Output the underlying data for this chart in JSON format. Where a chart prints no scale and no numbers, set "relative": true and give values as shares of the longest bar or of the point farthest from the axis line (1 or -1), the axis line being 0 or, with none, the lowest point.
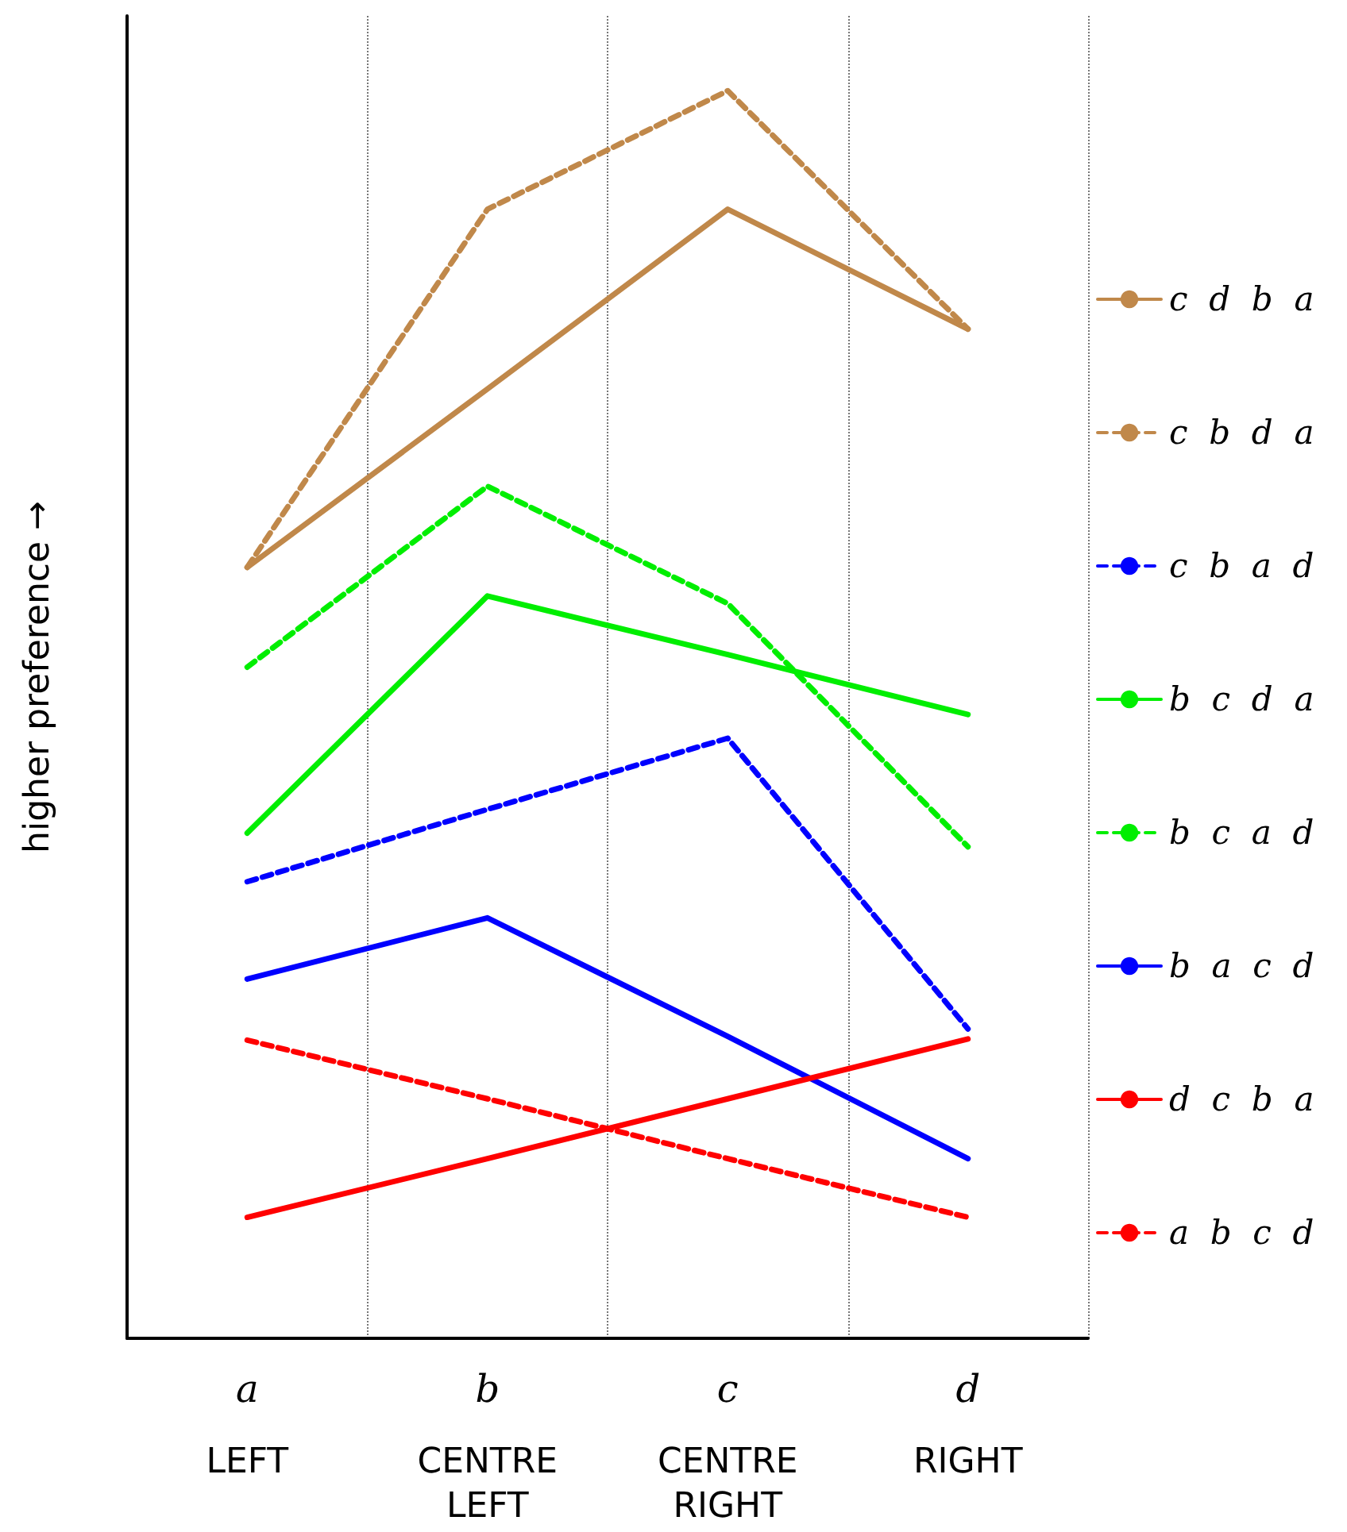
{
  "chart_data": {
    "type": "line",
    "relative": true,
    "ylabel": "higher preference →",
    "categories": [
      "a\nLEFT",
      "b\nCENTRE\nLEFT",
      "c\nCENTRE\nRIGHT",
      "d\nRIGHT"
    ],
    "series": [
      {
        "name": "c  d  b  a",
        "color": "#c0884a",
        "line_style": "solid",
        "values": [
          0.618,
          0.761,
          0.905,
          0.809
        ]
      },
      {
        "name": "c  b  d  a",
        "color": "#c0884a",
        "line_style": "dashed",
        "values": [
          0.618,
          0.905,
          1,
          0.809
        ]
      },
      {
        "name": "c  b  a  d",
        "color": "#0000ff",
        "line_style": "dashed",
        "values": [
          0.366,
          0.424,
          0.481,
          0.248
        ]
      },
      {
        "name": "b  c  d  a",
        "color": "#00ee00",
        "line_style": "solid",
        "values": [
          0.405,
          0.595,
          0.548,
          0.5
        ]
      },
      {
        "name": "b  c  a  d",
        "color": "#00ee00",
        "line_style": "dashed",
        "values": [
          0.538,
          0.683,
          0.589,
          0.394
        ]
      },
      {
        "name": "b  a  c  d",
        "color": "#0000ff",
        "line_style": "solid",
        "values": [
          0.288,
          0.337,
          0.242,
          0.144
        ]
      },
      {
        "name": "d  c  b  a",
        "color": "#ff0000",
        "line_style": "solid",
        "values": [
          0.097,
          0.144,
          0.192,
          0.24
        ]
      },
      {
        "name": "a  b  c  d",
        "color": "#ff0000",
        "line_style": "dashed",
        "values": [
          0.239,
          0.192,
          0.144,
          0.097
        ]
      }
    ],
    "grid": "x",
    "legend": "right",
    "marker": "none"
  }
}
